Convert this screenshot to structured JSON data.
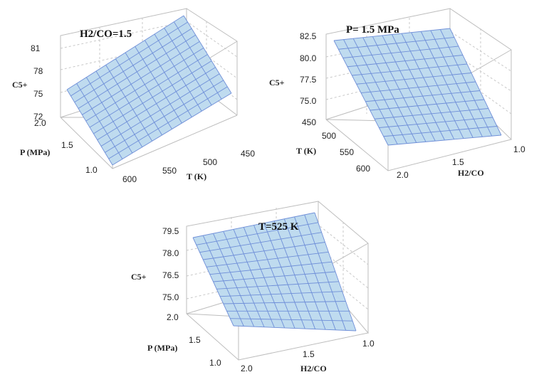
{
  "chart_data": [
    {
      "type": "surface",
      "title": "H2/CO=1.5",
      "zlabel": "C5+",
      "z_ticks": [
        "81",
        "78",
        "75",
        "72"
      ],
      "xlabel": "T (K)",
      "x_ticks": [
        "600",
        "550",
        "500",
        "450"
      ],
      "ylabel": "P (MPa)",
      "y_ticks": [
        "2.0",
        "1.5",
        "1.0"
      ],
      "corners": {
        "T600_P1.0": 72.5,
        "T600_P2.0": 76.0,
        "T450_P1.0": 78.0,
        "T450_P2.0": 83.0
      },
      "grid_size": 12
    },
    {
      "type": "surface",
      "title": "P= 1.5 MPa",
      "zlabel": "C5+",
      "z_ticks": [
        "82.5",
        "80.0",
        "77.5",
        "75.0"
      ],
      "xlabel": "H2/CO",
      "x_ticks": [
        "2.0",
        "1.5",
        "1.0"
      ],
      "ylabel": "T (K)",
      "y_ticks": [
        "450",
        "500",
        "550",
        "600"
      ],
      "corners": {
        "T450_H2.0": 81.5,
        "T450_H1.0": 81.8,
        "T600_H2.0": 73.5,
        "T600_H1.0": 73.2
      },
      "grid_size": 12
    },
    {
      "type": "surface",
      "title": "T=525 K",
      "zlabel": "C5+",
      "z_ticks": [
        "79.5",
        "78.0",
        "76.5",
        "75.0"
      ],
      "xlabel": "H2/CO",
      "x_ticks": [
        "2.0",
        "1.5",
        "1.0"
      ],
      "ylabel": "P (MPa)",
      "y_ticks": [
        "2.0",
        "1.5",
        "1.0"
      ],
      "corners": {
        "P2.0_H2.0": 79.0,
        "P2.0_H1.0": 79.3,
        "P1.0_H2.0": 74.0,
        "P1.0_H1.0": 73.5
      },
      "grid_size": 12
    }
  ]
}
